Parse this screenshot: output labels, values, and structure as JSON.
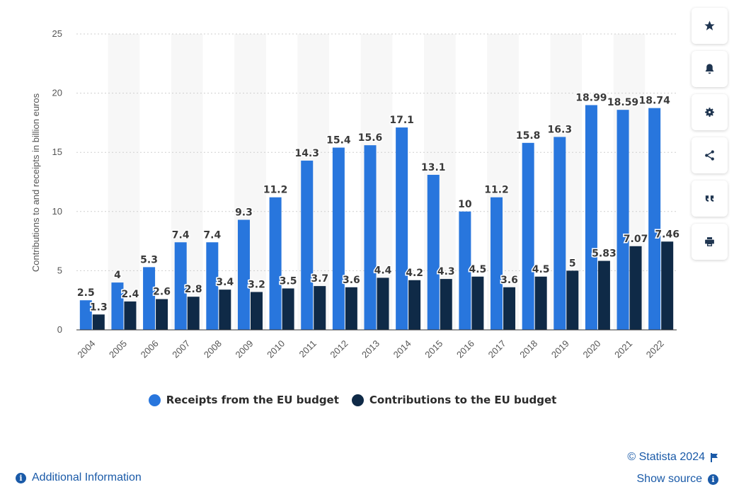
{
  "chart_data": {
    "type": "bar",
    "ylabel": "Contributions to and receipts in billion euros",
    "xlabel": "",
    "ylim": [
      0,
      25
    ],
    "yticks": [
      "0",
      "5",
      "10",
      "15",
      "20",
      "25"
    ],
    "grid": "horizontal dotted",
    "legend_position": "bottom",
    "categories": [
      "2004",
      "2005",
      "2006",
      "2007",
      "2008",
      "2009",
      "2010",
      "2011",
      "2012",
      "2013",
      "2014",
      "2015",
      "2016",
      "2017",
      "2018",
      "2019",
      "2020",
      "2021",
      "2022"
    ],
    "series": [
      {
        "name": "Receipts from the EU budget",
        "color": "#2876dd",
        "values": [
          2.5,
          4,
          5.3,
          7.4,
          7.4,
          9.3,
          11.2,
          14.3,
          15.4,
          15.6,
          17.1,
          13.1,
          10,
          11.2,
          15.8,
          16.3,
          18.99,
          18.59,
          18.74
        ],
        "labels": [
          "2.5",
          "4",
          "5.3",
          "7.4",
          "7.4",
          "9.3",
          "11.2",
          "14.3",
          "15.4",
          "15.6",
          "17.1",
          "13.1",
          "10",
          "11.2",
          "15.8",
          "16.3",
          "18.99",
          "18.59",
          "18.74"
        ]
      },
      {
        "name": "Contributions to the EU budget",
        "color": "#0f2a47",
        "values": [
          1.3,
          2.4,
          2.6,
          2.8,
          3.4,
          3.2,
          3.5,
          3.7,
          3.6,
          4.4,
          4.2,
          4.3,
          4.5,
          3.6,
          4.5,
          5,
          5.83,
          7.07,
          7.46
        ],
        "labels": [
          "1.3",
          "2.4",
          "2.6",
          "2.8",
          "3.4",
          "3.2",
          "3.5",
          "3.7",
          "3.6",
          "4.4",
          "4.2",
          "4.3",
          "4.5",
          "3.6",
          "4.5",
          "5",
          "5.83",
          "7.07",
          "7.46"
        ]
      }
    ]
  },
  "toolbar": {
    "icons": [
      "star-icon",
      "bell-icon",
      "gear-icon",
      "share-icon",
      "quote-icon",
      "print-icon"
    ]
  },
  "footer": {
    "credit": "© Statista 2024",
    "show_source": "Show source",
    "additional_info": "Additional Information"
  },
  "colors": {
    "receipts": "#2876dd",
    "contributions": "#0f2a47",
    "link": "#1a5aa8",
    "stripe": "#f7f7f7"
  }
}
